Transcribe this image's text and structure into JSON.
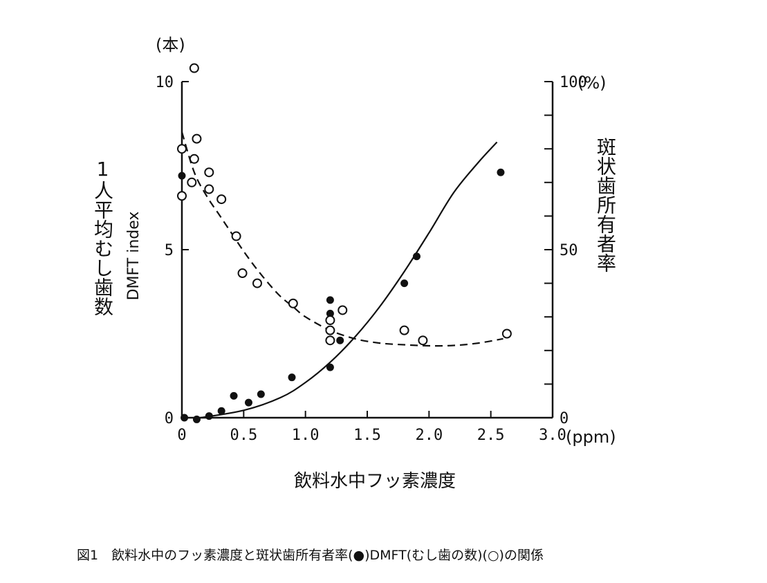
{
  "chart_data": {
    "type": "scatter",
    "xlabel": "飲料水中フッ素濃度",
    "ylabel_left": "1人平均むし歯数",
    "ylabel_left_sub": "DMFT index",
    "ylabel_right": "斑状歯所有者率",
    "left_unit": "(本)",
    "right_unit": "(%)",
    "x_unit": "(ppm)",
    "xlim": [
      0,
      3.0
    ],
    "ylim_left": [
      0,
      10
    ],
    "ylim_right": [
      0,
      100
    ],
    "x_ticks": [
      "0",
      "0.5",
      "1.0",
      "1.5",
      "2.0",
      "2.5",
      "3.0"
    ],
    "x_tick_values": [
      0,
      0.5,
      1.0,
      1.5,
      2.0,
      2.5,
      3.0
    ],
    "y_ticks_left": [
      "0",
      "5",
      "10"
    ],
    "y_tick_values_left": [
      0,
      5,
      10
    ],
    "y_ticks_right": [
      "0",
      "50",
      "100"
    ],
    "y_tick_values_right": [
      0,
      50,
      100
    ],
    "minor_right_ticks": [
      10,
      20,
      30,
      40,
      60,
      70,
      80,
      90
    ],
    "series": [
      {
        "marker": "filled",
        "points": [
          [
            0.0,
            7.2
          ],
          [
            0.02,
            0.0
          ],
          [
            0.12,
            -0.05
          ],
          [
            0.22,
            0.05
          ],
          [
            0.32,
            0.2
          ],
          [
            0.42,
            0.65
          ],
          [
            0.54,
            0.45
          ],
          [
            0.64,
            0.7
          ],
          [
            0.89,
            1.2
          ],
          [
            1.2,
            1.5
          ],
          [
            1.2,
            3.5
          ],
          [
            1.2,
            3.1
          ],
          [
            1.28,
            2.3
          ],
          [
            1.8,
            4.0
          ],
          [
            1.9,
            4.8
          ],
          [
            2.58,
            7.3
          ]
        ]
      },
      {
        "marker": "open",
        "points": [
          [
            0.0,
            8.0
          ],
          [
            0.0,
            6.6
          ],
          [
            0.1,
            10.4
          ],
          [
            0.12,
            8.3
          ],
          [
            0.1,
            7.7
          ],
          [
            0.08,
            7.0
          ],
          [
            0.22,
            7.3
          ],
          [
            0.22,
            6.8
          ],
          [
            0.32,
            6.5
          ],
          [
            0.44,
            5.4
          ],
          [
            0.49,
            4.3
          ],
          [
            0.61,
            4.0
          ],
          [
            0.9,
            3.4
          ],
          [
            1.2,
            2.9
          ],
          [
            1.2,
            2.6
          ],
          [
            1.2,
            2.3
          ],
          [
            1.3,
            3.2
          ],
          [
            1.8,
            2.6
          ],
          [
            1.95,
            2.3
          ],
          [
            2.63,
            2.5
          ]
        ]
      }
    ],
    "fit_curves": [
      {
        "style": "solid",
        "points": [
          [
            0.15,
            0.0
          ],
          [
            0.5,
            0.22
          ],
          [
            0.8,
            0.6
          ],
          [
            1.0,
            1.05
          ],
          [
            1.2,
            1.65
          ],
          [
            1.4,
            2.4
          ],
          [
            1.6,
            3.3
          ],
          [
            1.8,
            4.35
          ],
          [
            2.0,
            5.5
          ],
          [
            2.2,
            6.7
          ],
          [
            2.4,
            7.6
          ],
          [
            2.55,
            8.2
          ]
        ]
      },
      {
        "style": "dashed",
        "points": [
          [
            0.0,
            8.5
          ],
          [
            0.1,
            7.3
          ],
          [
            0.2,
            6.6
          ],
          [
            0.3,
            6.05
          ],
          [
            0.4,
            5.5
          ],
          [
            0.5,
            4.95
          ],
          [
            0.6,
            4.45
          ],
          [
            0.7,
            4.0
          ],
          [
            0.8,
            3.6
          ],
          [
            0.9,
            3.3
          ],
          [
            1.0,
            3.0
          ],
          [
            1.2,
            2.6
          ],
          [
            1.4,
            2.35
          ],
          [
            1.6,
            2.22
          ],
          [
            1.8,
            2.17
          ],
          [
            2.0,
            2.14
          ],
          [
            2.2,
            2.15
          ],
          [
            2.4,
            2.22
          ],
          [
            2.6,
            2.35
          ]
        ]
      }
    ]
  },
  "caption": "図1　飲料水中のフッ素濃度と斑状歯所有者率(●)DMFT(むし歯の数)(○)の関係"
}
